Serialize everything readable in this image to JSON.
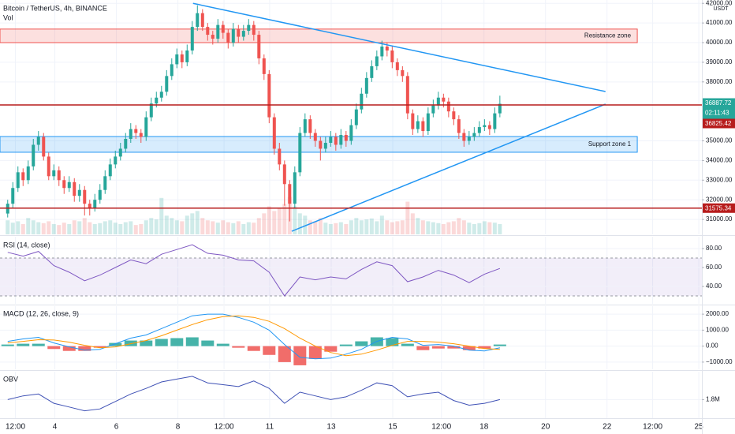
{
  "chart_data": [
    {
      "type": "candlestick",
      "title": "Bitcoin / TetherUS, 4h, BINANCE",
      "currency": "USDT",
      "volume_label": "Vol",
      "open": [
        31300,
        31800,
        32600,
        33400,
        33000,
        33700,
        34800,
        35200,
        34200,
        33200,
        33500,
        33000,
        32600,
        32900,
        32200,
        32500,
        31800,
        31600,
        32000,
        32500,
        33200,
        33800,
        34200,
        34600,
        35100,
        35600,
        35400,
        35200,
        36200,
        36900,
        37200,
        37500,
        38300,
        38900,
        39400,
        39000,
        39600,
        40800,
        41500,
        40800,
        40400,
        40200,
        40900,
        40500,
        40000,
        40700,
        40300,
        40600,
        40900,
        40400,
        39200,
        38400,
        36200,
        34600,
        33800,
        32800,
        31800,
        33400,
        35400,
        36100,
        35400,
        35000,
        34600,
        34900,
        35200,
        34800,
        35300,
        35000,
        35800,
        36600,
        37400,
        38200,
        38800,
        39300,
        39800,
        39600,
        39000,
        38600,
        38300,
        36400,
        35600,
        36000,
        35500,
        36400,
        36800,
        37200,
        37000,
        36500,
        36100,
        35400,
        35000,
        35200,
        35400,
        35700,
        35800,
        35600,
        36400
      ],
      "high": [
        32000,
        32900,
        33700,
        33600,
        34000,
        35100,
        35500,
        35400,
        34400,
        33800,
        33700,
        33200,
        33200,
        33100,
        32800,
        32700,
        32000,
        32300,
        32800,
        33500,
        34100,
        34500,
        34900,
        35400,
        35900,
        35800,
        35600,
        36500,
        37200,
        37500,
        37800,
        38600,
        39200,
        39700,
        39600,
        39900,
        41100,
        41900,
        41700,
        41000,
        40600,
        41200,
        41100,
        40700,
        41000,
        40900,
        40900,
        41200,
        41100,
        40600,
        39400,
        38600,
        36400,
        34900,
        34000,
        33000,
        33700,
        35700,
        36400,
        36300,
        35600,
        35200,
        35200,
        35500,
        35400,
        35600,
        35500,
        36100,
        36900,
        37700,
        38500,
        39100,
        39600,
        40100,
        40000,
        39800,
        39200,
        38800,
        38500,
        36600,
        36300,
        36200,
        36700,
        37100,
        37500,
        37400,
        37200,
        36700,
        36300,
        35600,
        35500,
        35700,
        36000,
        36100,
        36000,
        36700,
        37300
      ],
      "low": [
        31100,
        31600,
        32400,
        32700,
        32800,
        33500,
        34500,
        34000,
        33000,
        33000,
        32700,
        32300,
        32400,
        31900,
        31900,
        31200,
        31200,
        31400,
        31800,
        32300,
        33000,
        33600,
        34000,
        34400,
        34900,
        35100,
        34900,
        35000,
        36000,
        36700,
        37000,
        37300,
        38100,
        38700,
        38700,
        38800,
        39400,
        40600,
        40600,
        40100,
        39900,
        40000,
        40200,
        39700,
        39800,
        40000,
        40100,
        40400,
        40100,
        38900,
        38100,
        35900,
        34300,
        33500,
        31700,
        30900,
        31600,
        33200,
        35200,
        35100,
        34700,
        34000,
        34400,
        34700,
        34500,
        34600,
        34700,
        34800,
        35600,
        36400,
        37200,
        38000,
        38600,
        39100,
        39300,
        38700,
        38300,
        38000,
        36100,
        35300,
        35400,
        35200,
        35300,
        36200,
        36600,
        36700,
        36200,
        35800,
        35100,
        34700,
        34800,
        35000,
        35200,
        35500,
        35300,
        35400,
        36200
      ],
      "close": [
        31800,
        32600,
        33400,
        33000,
        33700,
        34800,
        35200,
        34200,
        33200,
        33500,
        33000,
        32600,
        32900,
        32200,
        32500,
        31800,
        31600,
        32000,
        32500,
        33200,
        33800,
        34200,
        34600,
        35100,
        35600,
        35400,
        35200,
        36200,
        36900,
        37200,
        37500,
        38300,
        38900,
        39400,
        39000,
        39600,
        40800,
        41500,
        40800,
        40400,
        40200,
        40900,
        40500,
        40000,
        40700,
        40300,
        40600,
        40900,
        40400,
        39200,
        38400,
        36200,
        34600,
        33800,
        32800,
        31800,
        33400,
        35400,
        36100,
        35400,
        35000,
        34600,
        34900,
        35200,
        34800,
        35300,
        35000,
        35800,
        36600,
        37400,
        38200,
        38800,
        39300,
        39800,
        39600,
        39000,
        38600,
        38300,
        36400,
        35600,
        36000,
        35500,
        36400,
        36800,
        37200,
        37000,
        36500,
        36100,
        35400,
        35000,
        35200,
        35400,
        35700,
        35800,
        35600,
        36400,
        36887
      ],
      "volume": [
        30,
        25,
        28,
        22,
        35,
        30,
        26,
        24,
        28,
        22,
        20,
        25,
        22,
        30,
        28,
        35,
        26,
        22,
        24,
        28,
        30,
        25,
        22,
        26,
        28,
        20,
        22,
        30,
        35,
        32,
        78,
        40,
        35,
        30,
        28,
        40,
        45,
        50,
        35,
        30,
        28,
        25,
        30,
        26,
        24,
        28,
        22,
        26,
        25,
        35,
        45,
        60,
        50,
        55,
        65,
        80,
        60,
        45,
        40,
        30,
        28,
        35,
        25,
        22,
        24,
        26,
        22,
        30,
        35,
        30,
        32,
        34,
        28,
        40,
        30,
        26,
        28,
        30,
        70,
        45,
        35,
        30,
        28,
        26,
        24,
        22,
        26,
        28,
        35,
        30,
        25,
        22,
        24,
        28,
        26,
        25,
        22
      ],
      "vlim": [
        0,
        130
      ],
      "colors": {
        "up": "#26a69a",
        "down": "#ef5350"
      },
      "grid": true,
      "xlim": [
        -1.5,
        135.4
      ],
      "ylim": [
        30240,
        42170
      ],
      "yticks": [
        {
          "value": 31000,
          "label": "31000.00"
        },
        {
          "value": 32000,
          "label": "32000.00"
        },
        {
          "value": 33000,
          "label": "33000.00"
        },
        {
          "value": 34000,
          "label": "34000.00"
        },
        {
          "value": 35000,
          "label": "35000.00"
        },
        {
          "value": 38000,
          "label": "38000.00"
        },
        {
          "value": 39000,
          "label": "39000.00"
        },
        {
          "value": 40000,
          "label": "40000.00"
        },
        {
          "value": 41000,
          "label": "41000.00"
        },
        {
          "value": 42000,
          "label": "42000.00"
        }
      ],
      "xticks": [
        {
          "value": 1.5,
          "label": "12:00"
        },
        {
          "value": 9.2,
          "label": "4"
        },
        {
          "value": 21.2,
          "label": "6"
        },
        {
          "value": 33.2,
          "label": "8"
        },
        {
          "value": 42.2,
          "label": "12:00"
        },
        {
          "value": 51.1,
          "label": "11"
        },
        {
          "value": 63.1,
          "label": "13"
        },
        {
          "value": 75.1,
          "label": "15"
        },
        {
          "value": 84.6,
          "label": "12:00"
        },
        {
          "value": 92.9,
          "label": "18"
        },
        {
          "value": 104.9,
          "label": "20"
        },
        {
          "value": 116.9,
          "label": "22"
        },
        {
          "value": 125.8,
          "label": "12:00"
        },
        {
          "value": 134.8,
          "label": "25"
        }
      ],
      "zones": [
        {
          "label": "Resistance zone",
          "range": [
            40000,
            40690
          ],
          "x_end": 122.8,
          "color": "#ef5350"
        },
        {
          "label": "Support zone 1",
          "range": [
            34420,
            35220
          ],
          "x_end": 122.8,
          "color": "#2196f3"
        }
      ],
      "trendlines": [
        {
          "points": [
            [
              36.15,
              42000
            ],
            [
              116.6,
              37510
            ]
          ],
          "color": "#2196f3"
        },
        {
          "points": [
            [
              55.4,
              30400
            ],
            [
              116.6,
              36870
            ]
          ],
          "color": "#2196f3"
        }
      ],
      "levels": [
        {
          "value": 36825.42,
          "color": "#b71c1c"
        },
        {
          "value": 31575.34,
          "color": "#b71c1c"
        }
      ],
      "last_price": {
        "value": 36887.72,
        "countdown": "02:11:43",
        "color": "#26a69a"
      }
    },
    {
      "type": "rsi",
      "title": "RSI (14, close)",
      "x": [
        0,
        3,
        6,
        9,
        12,
        15,
        18,
        21,
        24,
        27,
        30,
        33,
        36,
        39,
        42,
        45,
        48,
        51,
        54,
        57,
        60,
        63,
        66,
        69,
        72,
        75,
        78,
        81,
        84,
        87,
        90,
        93,
        96
      ],
      "values": [
        76,
        72,
        77,
        62,
        55,
        46,
        52,
        60,
        68,
        64,
        74,
        79,
        84,
        75,
        73,
        68,
        67,
        55,
        30,
        50,
        47,
        50,
        48,
        58,
        66,
        62,
        45,
        50,
        57,
        52,
        44,
        53,
        59
      ],
      "color": "#7e57c2",
      "band": [
        30,
        70
      ],
      "band_color": "#7e57c2",
      "ylim": [
        21.7,
        92.5
      ],
      "yticks": [
        {
          "value": 40,
          "label": "40.00"
        },
        {
          "value": 60,
          "label": "60.00"
        },
        {
          "value": 80,
          "label": "80.00"
        }
      ]
    },
    {
      "type": "macd",
      "title": "MACD (12, 26, close, 9)",
      "x": [
        0,
        3,
        6,
        9,
        12,
        15,
        18,
        21,
        24,
        27,
        30,
        33,
        36,
        39,
        42,
        45,
        48,
        51,
        54,
        57,
        60,
        63,
        66,
        69,
        72,
        75,
        78,
        81,
        84,
        87,
        90,
        93,
        96
      ],
      "macd": {
        "values": [
          300,
          450,
          550,
          200,
          -50,
          -250,
          -200,
          150,
          500,
          700,
          1100,
          1500,
          1900,
          2000,
          2000,
          1800,
          1500,
          1000,
          100,
          -700,
          -800,
          -750,
          -500,
          -200,
          300,
          550,
          450,
          50,
          100,
          0,
          -250,
          -300,
          -100
        ],
        "color": "#2196f3"
      },
      "signal": {
        "values": [
          200,
          300,
          400,
          380,
          250,
          50,
          -100,
          -50,
          150,
          350,
          650,
          1000,
          1350,
          1650,
          1850,
          1900,
          1800,
          1550,
          1100,
          500,
          0,
          -400,
          -600,
          -500,
          -250,
          50,
          300,
          300,
          250,
          150,
          0,
          -150,
          -200
        ],
        "color": "#ff9800"
      },
      "histogram": {
        "values": [
          100,
          150,
          150,
          -180,
          -300,
          -300,
          -100,
          200,
          350,
          350,
          450,
          500,
          550,
          350,
          150,
          -100,
          -300,
          -550,
          -1000,
          -1200,
          -800,
          -350,
          100,
          300,
          550,
          500,
          150,
          -250,
          -150,
          -150,
          -250,
          -150,
          100
        ],
        "colors": {
          "up": "#26a69a",
          "down": "#ef5350"
        }
      },
      "ylim": [
        -1450,
        2500
      ],
      "yticks": [
        {
          "value": -1000,
          "label": "−1000.00"
        },
        {
          "value": 0,
          "label": "0.00"
        },
        {
          "value": 1000,
          "label": "1000.00"
        },
        {
          "value": 2000,
          "label": "2000.00"
        }
      ]
    },
    {
      "type": "line",
      "title": "OBV",
      "x": [
        0,
        3,
        6,
        9,
        12,
        15,
        18,
        21,
        24,
        27,
        30,
        33,
        36,
        39,
        42,
        45,
        48,
        51,
        54,
        57,
        60,
        63,
        66,
        69,
        72,
        75,
        78,
        81,
        84,
        87,
        90,
        93,
        96
      ],
      "values": [
        1800000,
        1840000,
        1860000,
        1760000,
        1720000,
        1680000,
        1700000,
        1780000,
        1860000,
        1920000,
        1990000,
        2020000,
        2050000,
        1980000,
        1960000,
        1940000,
        2000000,
        1920000,
        1760000,
        1880000,
        1840000,
        1800000,
        1830000,
        1900000,
        1980000,
        1950000,
        1830000,
        1860000,
        1880000,
        1790000,
        1740000,
        1760000,
        1800000
      ],
      "color": "#3f51b5",
      "ylim": [
        1600000,
        2100000
      ],
      "yticks": [
        {
          "value": 1800000,
          "label": "1.8M"
        }
      ]
    }
  ]
}
